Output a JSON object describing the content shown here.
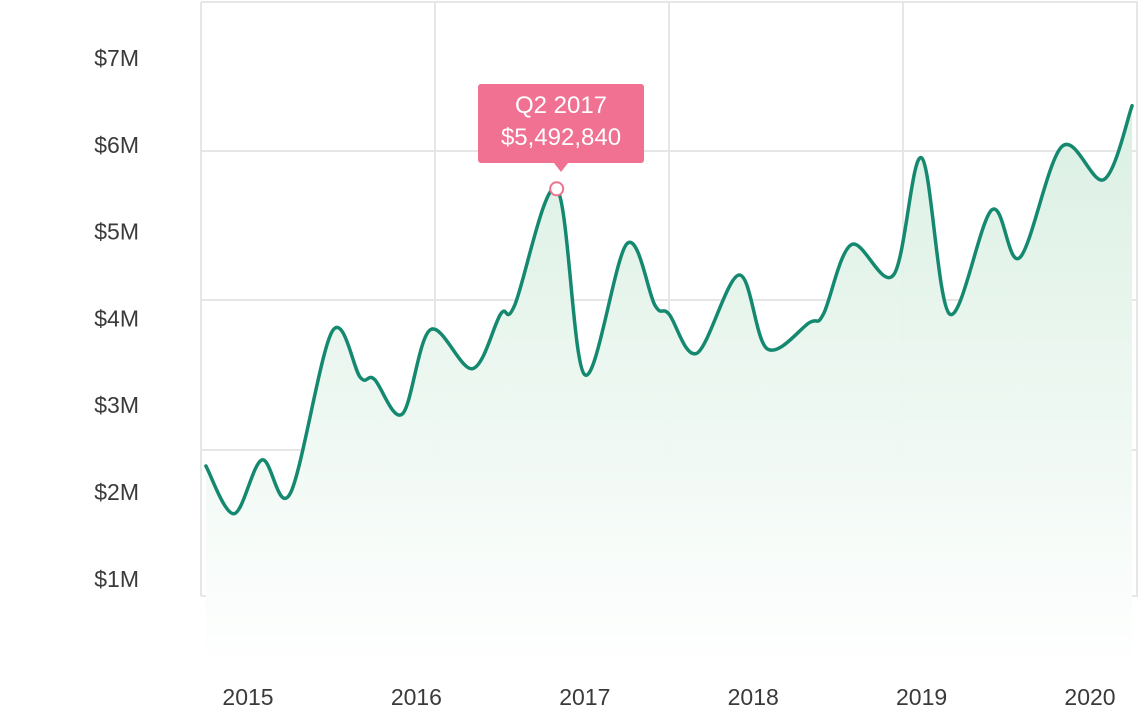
{
  "chart_data": {
    "type": "area",
    "title": "",
    "xlabel": "",
    "ylabel": "",
    "x_ticks": [
      "2015",
      "2016",
      "2017",
      "2018",
      "2019",
      "2020"
    ],
    "y_ticks": [
      "$1M",
      "$2M",
      "$3M",
      "$4M",
      "$5M",
      "$6M",
      "$7M"
    ],
    "ylim": [
      1000000,
      7000000
    ],
    "grid": true,
    "series": [
      {
        "color": "#14896f",
        "fill": "#e3f3ea",
        "points": [
          {
            "x": "2014-10",
            "y": 2300000
          },
          {
            "x": "2014-12",
            "y": 1750000
          },
          {
            "x": "2015-02",
            "y": 2370000
          },
          {
            "x": "2015-04",
            "y": 1980000
          },
          {
            "x": "2015-07",
            "y": 3850000
          },
          {
            "x": "2015-09",
            "y": 3320000
          },
          {
            "x": "2015-10",
            "y": 3300000
          },
          {
            "x": "2015-12",
            "y": 2900000
          },
          {
            "x": "2016-02",
            "y": 3870000
          },
          {
            "x": "2016-05",
            "y": 3420000
          },
          {
            "x": "2016-07",
            "y": 4050000
          },
          {
            "x": "2016-08",
            "y": 4150000
          },
          {
            "x": "2016-11",
            "y": 5492840
          },
          {
            "x": "2017-01",
            "y": 3350000
          },
          {
            "x": "2017-04",
            "y": 4860000
          },
          {
            "x": "2017-06",
            "y": 4150000
          },
          {
            "x": "2017-07",
            "y": 4050000
          },
          {
            "x": "2017-09",
            "y": 3600000
          },
          {
            "x": "2017-12",
            "y": 4500000
          },
          {
            "x": "2018-02",
            "y": 3650000
          },
          {
            "x": "2018-05",
            "y": 3950000
          },
          {
            "x": "2018-06",
            "y": 4050000
          },
          {
            "x": "2018-08",
            "y": 4850000
          },
          {
            "x": "2018-11",
            "y": 4500000
          },
          {
            "x": "2019-01",
            "y": 5850000
          },
          {
            "x": "2019-03",
            "y": 4050000
          },
          {
            "x": "2019-06",
            "y": 5250000
          },
          {
            "x": "2019-08",
            "y": 4700000
          },
          {
            "x": "2019-11",
            "y": 5980000
          },
          {
            "x": "2020-02",
            "y": 5600000
          },
          {
            "x": "2020-04",
            "y": 6450000
          }
        ]
      }
    ],
    "tooltip": {
      "label": "Q2 2017",
      "value": "$5,492,840",
      "x": "2016-11",
      "y": 5492840,
      "color": "#f07191"
    }
  }
}
